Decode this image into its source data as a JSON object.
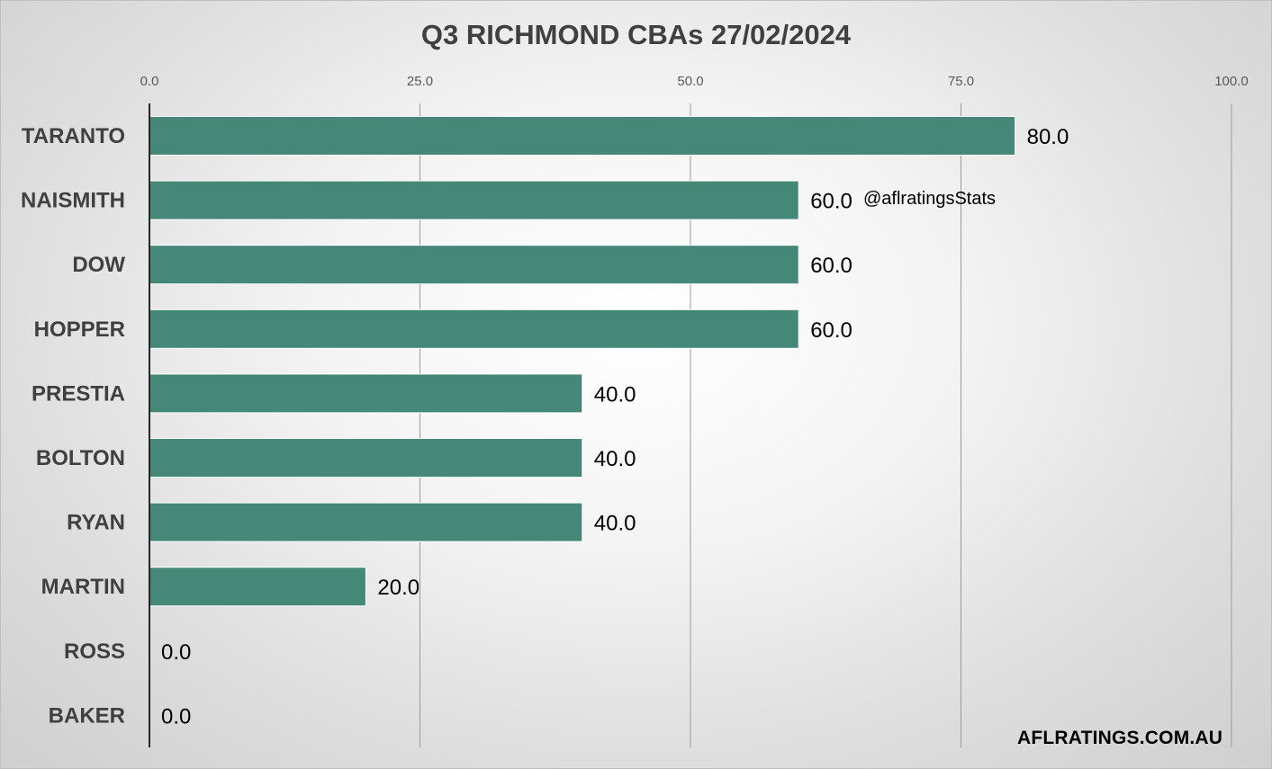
{
  "chart_data": {
    "type": "bar",
    "orientation": "horizontal",
    "title": "Q3 RICHMOND CBAs 27/02/2024",
    "categories": [
      "TARANTO",
      "NAISMITH",
      "DOW",
      "HOPPER",
      "PRESTIA",
      "BOLTON",
      "RYAN",
      "MARTIN",
      "ROSS",
      "BAKER"
    ],
    "values": [
      80.0,
      60.0,
      60.0,
      60.0,
      40.0,
      40.0,
      40.0,
      20.0,
      0.0,
      0.0
    ],
    "data_labels": [
      "80.0",
      "60.0",
      "60.0",
      "60.0",
      "40.0",
      "40.0",
      "40.0",
      "20.0",
      "0.0",
      "0.0"
    ],
    "xlim": [
      0,
      100
    ],
    "xticks": [
      0,
      25,
      50,
      75,
      100
    ],
    "xtick_labels": [
      "0.0",
      "25.0",
      "50.0",
      "75.0",
      "100.0"
    ],
    "x_axis_position": "top",
    "grid": true,
    "bar_color": "#468878",
    "annotation": "@aflratingsStats",
    "watermark": "AFLRATINGS.COM.AU"
  }
}
